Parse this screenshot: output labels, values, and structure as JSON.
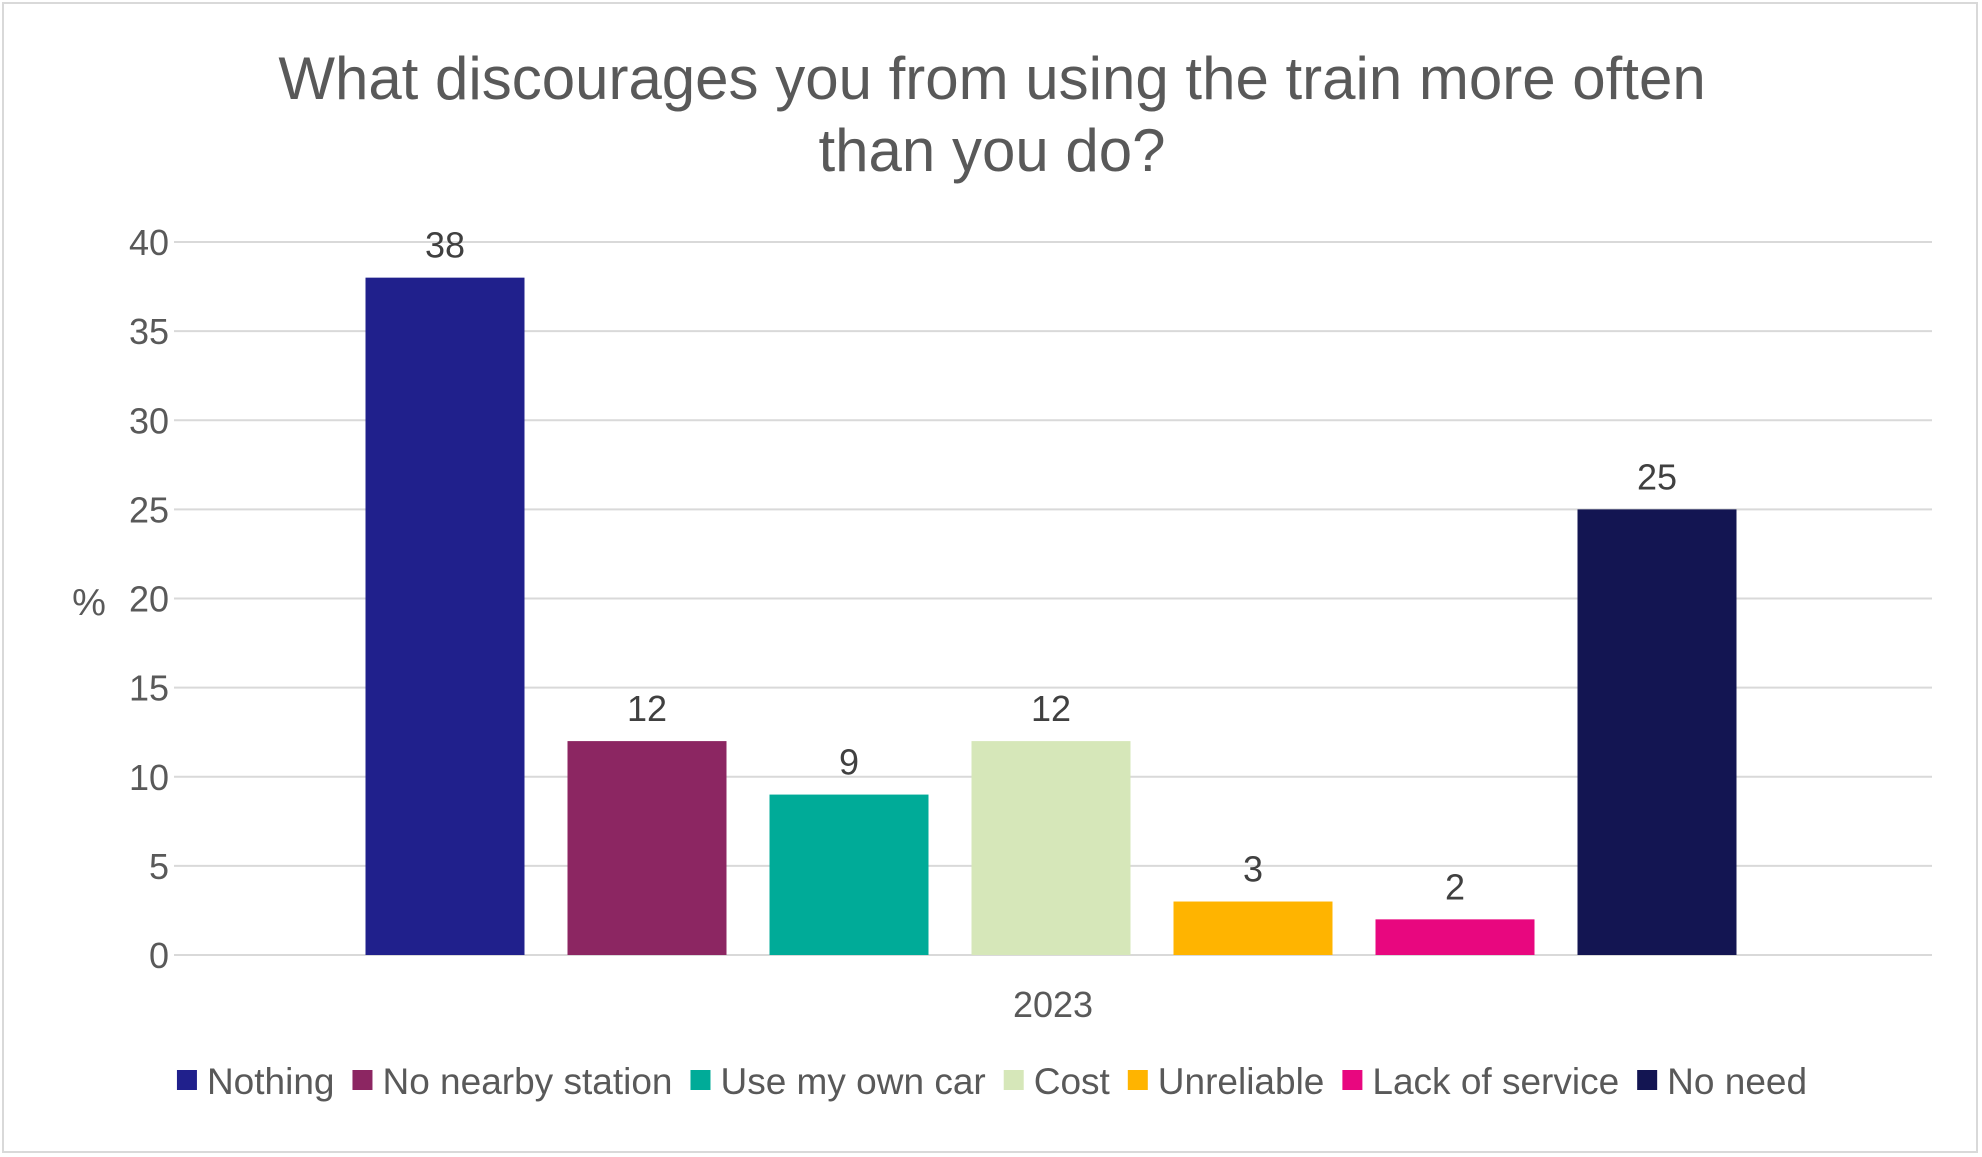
{
  "chart_data": {
    "type": "bar",
    "title_lines": [
      "What discourages you from using the train more often",
      "than you do?"
    ],
    "ylabel": "%",
    "xlabel": "",
    "ylim": [
      0,
      40
    ],
    "yticks": [
      0,
      5,
      10,
      15,
      20,
      25,
      30,
      35,
      40
    ],
    "categories": [
      "2023"
    ],
    "grid": true,
    "legend_position": "bottom",
    "series": [
      {
        "name": "Nothing",
        "values": [
          38
        ],
        "color": "#20208c"
      },
      {
        "name": "No nearby station",
        "values": [
          12
        ],
        "color": "#8c2662"
      },
      {
        "name": "Use my own car",
        "values": [
          9
        ],
        "color": "#00ab98"
      },
      {
        "name": "Cost",
        "values": [
          12
        ],
        "color": "#d6e7b9"
      },
      {
        "name": "Unreliable",
        "values": [
          3
        ],
        "color": "#ffb400"
      },
      {
        "name": "Lack of service",
        "values": [
          2
        ],
        "color": "#e8077f"
      },
      {
        "name": "No need",
        "values": [
          25
        ],
        "color": "#131552"
      }
    ]
  }
}
